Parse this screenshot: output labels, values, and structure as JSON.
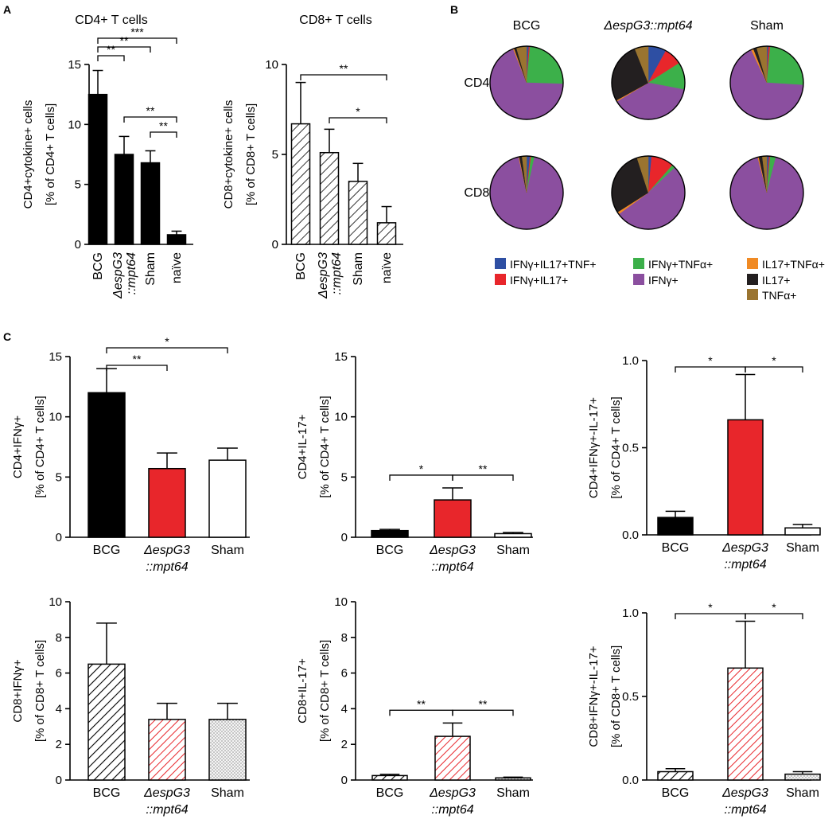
{
  "panel_labels": {
    "a": "A",
    "b": "B",
    "c": "C"
  },
  "colors": {
    "ifng_il17_tnf": "#2e4fa3",
    "ifng_il17": "#e8262b",
    "ifng_tnf": "#3cb04a",
    "ifng": "#8b4f9f",
    "il17_tnf": "#f08a24",
    "il17": "#231f20",
    "tnf": "#9a7430",
    "bcg": "#000000",
    "mutant": "#e8262b",
    "sham": "#ffffff"
  },
  "chart_data": [
    {
      "id": "A1",
      "type": "bar",
      "title": "CD4+ T cells",
      "ylabel": [
        "CD4+cytokine+ cells",
        "[% of CD4+ T cells]"
      ],
      "categories": [
        [
          "BCG"
        ],
        [
          "ΔespG3",
          "::mpt64"
        ],
        [
          "Sham"
        ],
        [
          "naïve"
        ]
      ],
      "values": [
        12.5,
        7.5,
        6.8,
        0.8
      ],
      "errors": [
        2.0,
        1.5,
        1.0,
        0.3
      ],
      "ylim": [
        0,
        15
      ],
      "yticks": [
        0,
        5,
        10,
        15
      ],
      "tick_labels": [
        "0",
        "5",
        "10",
        "15"
      ],
      "fill": "solid",
      "significance": [
        {
          "a": 0,
          "b": 1,
          "label": "**"
        },
        {
          "a": 0,
          "b": 2,
          "label": "**"
        },
        {
          "a": 0,
          "b": 3,
          "label": "***"
        },
        {
          "a": 1,
          "b": 3,
          "label": "**"
        },
        {
          "a": 2,
          "b": 3,
          "label": "**"
        }
      ]
    },
    {
      "id": "A2",
      "type": "bar",
      "title": "CD8+ T cells",
      "ylabel": [
        "CD8+cytokine+ cells",
        "[% of CD8+ T cells]"
      ],
      "categories": [
        [
          "BCG"
        ],
        [
          "ΔespG3",
          "::mpt64"
        ],
        [
          "Sham"
        ],
        [
          "naïve"
        ]
      ],
      "values": [
        6.7,
        5.1,
        3.5,
        1.2
      ],
      "errors": [
        2.3,
        1.3,
        1.0,
        0.9
      ],
      "ylim": [
        0,
        10
      ],
      "yticks": [
        0,
        5,
        10
      ],
      "tick_labels": [
        "0",
        "5",
        "10"
      ],
      "fill": "hatch",
      "significance": [
        {
          "a": 0,
          "b": 3,
          "label": "**"
        },
        {
          "a": 1,
          "b": 3,
          "label": "*"
        }
      ]
    },
    {
      "id": "B",
      "type": "pie",
      "columns": [
        "BCG",
        "ΔespG3::mpt64",
        "Sham"
      ],
      "rows": [
        "CD4+",
        "CD8+"
      ],
      "legend": [
        {
          "key": "ifng_il17_tnf",
          "label": "IFNγ+IL17+TNF+"
        },
        {
          "key": "ifng_tnf",
          "label": "IFNγ+TNFα+"
        },
        {
          "key": "il17_tnf",
          "label": "IL17+TNFα+"
        },
        {
          "key": "ifng_il17",
          "label": "IFNγ+IL17+"
        },
        {
          "key": "ifng",
          "label": "IFNγ+"
        },
        {
          "key": "il17",
          "label": "IL17+"
        },
        {
          "key": "tnf",
          "label": "TNFα+"
        }
      ],
      "pies": [
        [
          [
            {
              "key": "ifng_il17_tnf",
              "value": 1.0
            },
            {
              "key": "ifng_il17",
              "value": 0.5
            },
            {
              "key": "ifng_tnf",
              "value": 24.0
            },
            {
              "key": "ifng",
              "value": 68.5
            },
            {
              "key": "il17_tnf",
              "value": 0.5
            },
            {
              "key": "il17",
              "value": 1.0
            },
            {
              "key": "tnf",
              "value": 4.5
            }
          ],
          [
            {
              "key": "ifng_il17_tnf",
              "value": 8.0
            },
            {
              "key": "ifng_il17",
              "value": 8.0
            },
            {
              "key": "ifng_tnf",
              "value": 12.0
            },
            {
              "key": "ifng",
              "value": 38.5
            },
            {
              "key": "il17_tnf",
              "value": 0.5
            },
            {
              "key": "il17",
              "value": 27.0
            },
            {
              "key": "tnf",
              "value": 6.0
            }
          ],
          [
            {
              "key": "ifng_il17_tnf",
              "value": 0.8
            },
            {
              "key": "ifng_il17",
              "value": 0.7
            },
            {
              "key": "ifng_tnf",
              "value": 24.5
            },
            {
              "key": "ifng",
              "value": 67.0
            },
            {
              "key": "il17_tnf",
              "value": 1.0
            },
            {
              "key": "il17",
              "value": 1.5
            },
            {
              "key": "tnf",
              "value": 4.5
            }
          ]
        ],
        [
          [
            {
              "key": "ifng_il17_tnf",
              "value": 1.5
            },
            {
              "key": "ifng_il17",
              "value": 0.5
            },
            {
              "key": "ifng_tnf",
              "value": 1.5
            },
            {
              "key": "ifng",
              "value": 93.0
            },
            {
              "key": "il17_tnf",
              "value": 0.3
            },
            {
              "key": "il17",
              "value": 1.2
            },
            {
              "key": "tnf",
              "value": 2.0
            }
          ],
          [
            {
              "key": "ifng_il17_tnf",
              "value": 1.5
            },
            {
              "key": "ifng_il17",
              "value": 10.0
            },
            {
              "key": "ifng_tnf",
              "value": 1.5
            },
            {
              "key": "ifng",
              "value": 52.0
            },
            {
              "key": "il17_tnf",
              "value": 1.0
            },
            {
              "key": "il17",
              "value": 29.0
            },
            {
              "key": "tnf",
              "value": 5.0
            }
          ],
          [
            {
              "key": "ifng_il17_tnf",
              "value": 1.0
            },
            {
              "key": "ifng_il17",
              "value": 0.5
            },
            {
              "key": "ifng_tnf",
              "value": 2.5
            },
            {
              "key": "ifng",
              "value": 92.0
            },
            {
              "key": "il17_tnf",
              "value": 0.5
            },
            {
              "key": "il17",
              "value": 1.5
            },
            {
              "key": "tnf",
              "value": 2.0
            }
          ]
        ]
      ]
    },
    {
      "id": "C1",
      "type": "bar",
      "ylabel": [
        "CD4+IFNγ+",
        "[% of CD4+ T cells]"
      ],
      "categories": [
        [
          "BCG"
        ],
        [
          "ΔespG3",
          "::mpt64"
        ],
        [
          "Sham"
        ]
      ],
      "values": [
        12.0,
        5.7,
        6.4
      ],
      "errors": [
        2.0,
        1.3,
        1.0
      ],
      "ylim": [
        0,
        15
      ],
      "yticks": [
        0,
        5,
        10,
        15
      ],
      "tick_labels": [
        "0",
        "5",
        "10",
        "15"
      ],
      "fill": "solid",
      "significance": [
        {
          "a": 0,
          "b": 1,
          "label": "**"
        },
        {
          "a": 0,
          "b": 2,
          "label": "*"
        }
      ]
    },
    {
      "id": "C2",
      "type": "bar",
      "ylabel": [
        "CD4+IL-17+",
        "[% of CD4+ T cells]"
      ],
      "categories": [
        [
          "BCG"
        ],
        [
          "ΔespG3",
          "::mpt64"
        ],
        [
          "Sham"
        ]
      ],
      "values": [
        0.55,
        3.1,
        0.3
      ],
      "errors": [
        0.1,
        1.0,
        0.1
      ],
      "ylim": [
        0,
        15
      ],
      "yticks": [
        0,
        5,
        10,
        15
      ],
      "tick_labels": [
        "0",
        "5",
        "10",
        "15"
      ],
      "fill": "solid",
      "significance": [
        {
          "a": 0,
          "b": 1,
          "label": "*"
        },
        {
          "a": 1,
          "b": 2,
          "label": "**"
        }
      ]
    },
    {
      "id": "C3",
      "type": "bar",
      "ylabel": [
        "CD4+IFNγ+-IL-17+",
        "[% of CD4+ T cells]"
      ],
      "categories": [
        [
          "BCG"
        ],
        [
          "ΔespG3",
          "::mpt64"
        ],
        [
          "Sham"
        ]
      ],
      "values": [
        0.1,
        0.66,
        0.04
      ],
      "errors": [
        0.035,
        0.26,
        0.02
      ],
      "ylim": [
        0,
        1.0
      ],
      "yticks": [
        0,
        0.5,
        1.0
      ],
      "tick_labels": [
        "0.0",
        "0.5",
        "1.0"
      ],
      "fill": "solid",
      "significance": [
        {
          "a": 0,
          "b": 1,
          "label": "*"
        },
        {
          "a": 1,
          "b": 2,
          "label": "*"
        }
      ]
    },
    {
      "id": "C4",
      "type": "bar",
      "ylabel": [
        "CD8+IFNγ+",
        "[% of CD8+ T cells]"
      ],
      "categories": [
        [
          "BCG"
        ],
        [
          "ΔespG3",
          "::mpt64"
        ],
        [
          "Sham"
        ]
      ],
      "values": [
        6.5,
        3.4,
        3.4
      ],
      "errors": [
        2.3,
        0.9,
        0.9
      ],
      "ylim": [
        0,
        10
      ],
      "yticks": [
        0,
        2,
        4,
        6,
        8,
        10
      ],
      "tick_labels": [
        "0",
        "2",
        "4",
        "6",
        "8",
        "10"
      ],
      "fill": "pattern",
      "significance": []
    },
    {
      "id": "C5",
      "type": "bar",
      "ylabel": [
        "CD8+IL-17+",
        "[% of CD8+ T cells]"
      ],
      "categories": [
        [
          "BCG"
        ],
        [
          "ΔespG3",
          "::mpt64"
        ],
        [
          "Sham"
        ]
      ],
      "values": [
        0.25,
        2.45,
        0.12
      ],
      "errors": [
        0.07,
        0.75,
        0.04
      ],
      "ylim": [
        0,
        10
      ],
      "yticks": [
        0,
        2,
        4,
        6,
        8,
        10
      ],
      "tick_labels": [
        "0",
        "2",
        "4",
        "6",
        "8",
        "10"
      ],
      "fill": "pattern",
      "significance": [
        {
          "a": 0,
          "b": 1,
          "label": "**"
        },
        {
          "a": 1,
          "b": 2,
          "label": "**"
        }
      ]
    },
    {
      "id": "C6",
      "type": "bar",
      "ylabel": [
        "CD8+IFNγ+-IL-17+",
        "[% of CD8+ T cells]"
      ],
      "categories": [
        [
          "BCG"
        ],
        [
          "ΔespG3",
          "::mpt64"
        ],
        [
          "Sham"
        ]
      ],
      "values": [
        0.05,
        0.67,
        0.035
      ],
      "errors": [
        0.018,
        0.28,
        0.015
      ],
      "ylim": [
        0,
        1.0
      ],
      "yticks": [
        0,
        0.5,
        1.0
      ],
      "tick_labels": [
        "0.0",
        "0.5",
        "1.0"
      ],
      "fill": "pattern",
      "significance": [
        {
          "a": 0,
          "b": 1,
          "label": "*"
        },
        {
          "a": 1,
          "b": 2,
          "label": "*"
        }
      ]
    }
  ]
}
